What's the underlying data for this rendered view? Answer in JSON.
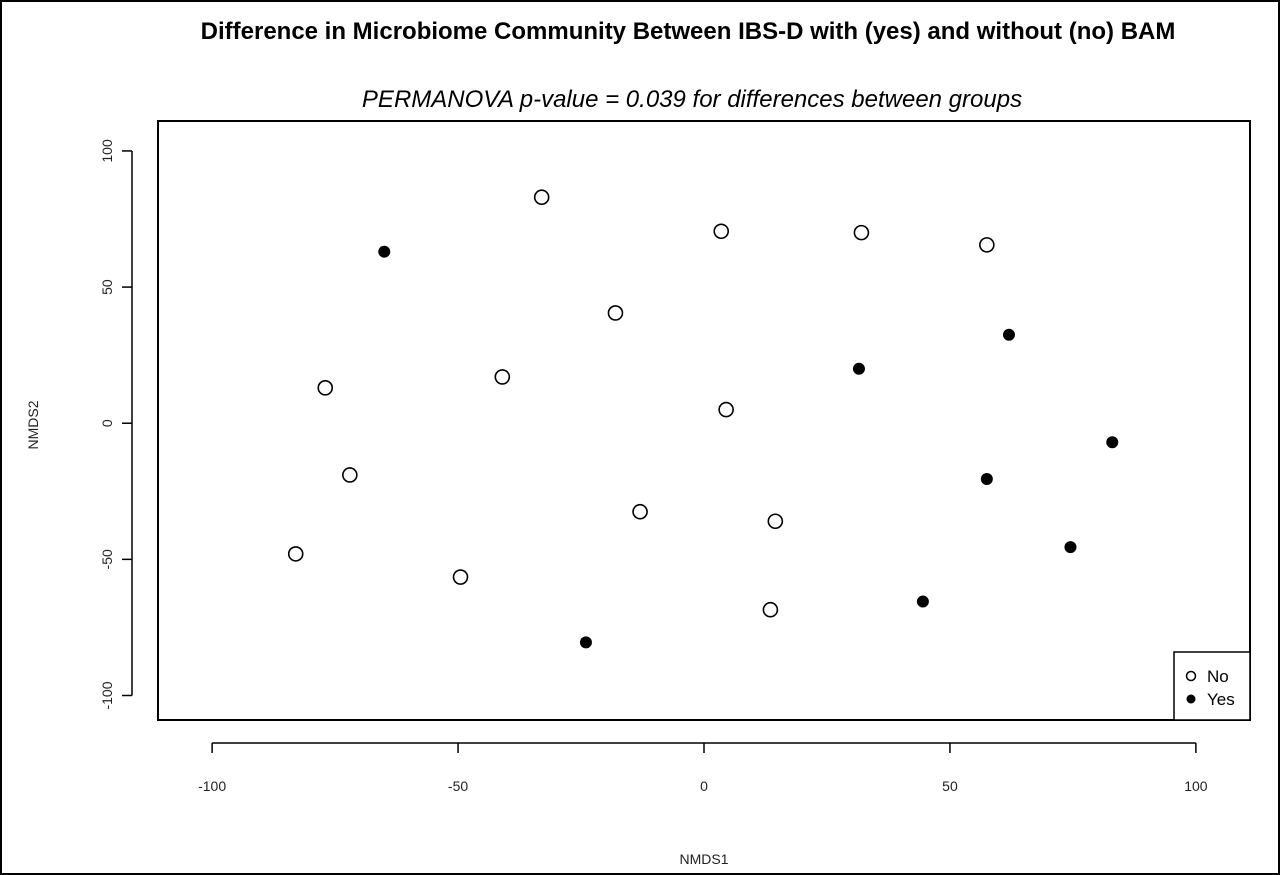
{
  "chart_data": {
    "type": "scatter",
    "title": "Difference in Microbiome Community Between IBS-D with (yes) and without (no) BAM",
    "subtitle": "PERMANOVA p-value = 0.039 for differences between groups",
    "xlabel": "NMDS1",
    "ylabel": "NMDS2",
    "xlim": [
      -111,
      111
    ],
    "ylim": [
      -109,
      111
    ],
    "xticks": [
      -100,
      -50,
      0,
      50,
      100
    ],
    "yticks": [
      -100,
      -50,
      0,
      50,
      100
    ],
    "xtick_labels": [
      "-100",
      "-50",
      "0",
      "50",
      "100"
    ],
    "ytick_labels": [
      "-100",
      "-50",
      "0",
      "50",
      "100"
    ],
    "grid": false,
    "legend_position": "bottom-right",
    "series": [
      {
        "name": "No",
        "marker": "open-circle",
        "color": "#000000",
        "points": [
          [
            -33,
            83
          ],
          [
            3.5,
            70.5
          ],
          [
            32,
            70
          ],
          [
            57.5,
            65.5
          ],
          [
            -18,
            40.5
          ],
          [
            -77,
            13
          ],
          [
            -41,
            17
          ],
          [
            4.5,
            5
          ],
          [
            -72,
            -19
          ],
          [
            -13,
            -32.5
          ],
          [
            14.5,
            -36
          ],
          [
            -83,
            -48
          ],
          [
            -49.5,
            -56.5
          ],
          [
            13.5,
            -68.5
          ]
        ]
      },
      {
        "name": "Yes",
        "marker": "filled-circle",
        "color": "#000000",
        "points": [
          [
            -65,
            63
          ],
          [
            62,
            32.5
          ],
          [
            31.5,
            20
          ],
          [
            83,
            -7
          ],
          [
            57.5,
            -20.5
          ],
          [
            74.5,
            -45.5
          ],
          [
            44.5,
            -65.5
          ],
          [
            -24,
            -80.5
          ]
        ]
      }
    ]
  }
}
